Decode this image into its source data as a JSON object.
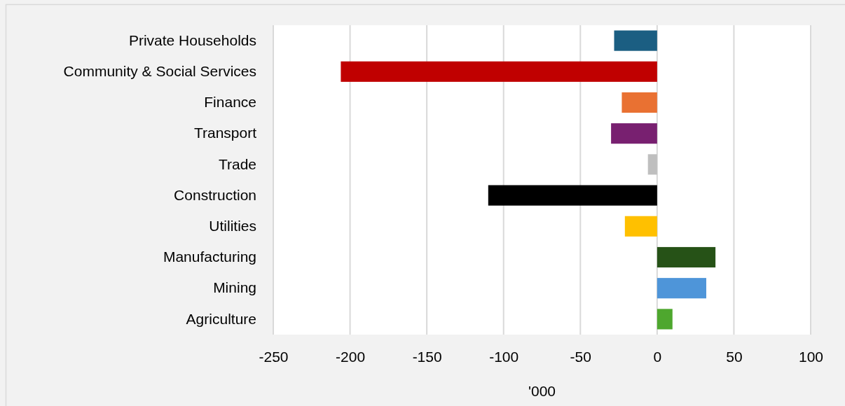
{
  "chart_data": {
    "type": "bar",
    "orientation": "horizontal",
    "categories": [
      "Private Households",
      "Community & Social Services",
      "Finance",
      "Transport",
      "Trade",
      "Construction",
      "Utilities",
      "Manufacturing",
      "Mining",
      "Agriculture"
    ],
    "values": [
      -28,
      -206,
      -23,
      -30,
      -6,
      -110,
      -21,
      38,
      32,
      10
    ],
    "colors": [
      "#1b5e82",
      "#c00000",
      "#e97132",
      "#782070",
      "#bfbfbf",
      "#000000",
      "#ffc000",
      "#265217",
      "#4e95d9",
      "#4ea72e"
    ],
    "xlabel": "'000",
    "xlim": [
      -250,
      100
    ],
    "xticks": [
      -250,
      -200,
      -150,
      -100,
      -50,
      0,
      50,
      100
    ],
    "grid": "x"
  }
}
